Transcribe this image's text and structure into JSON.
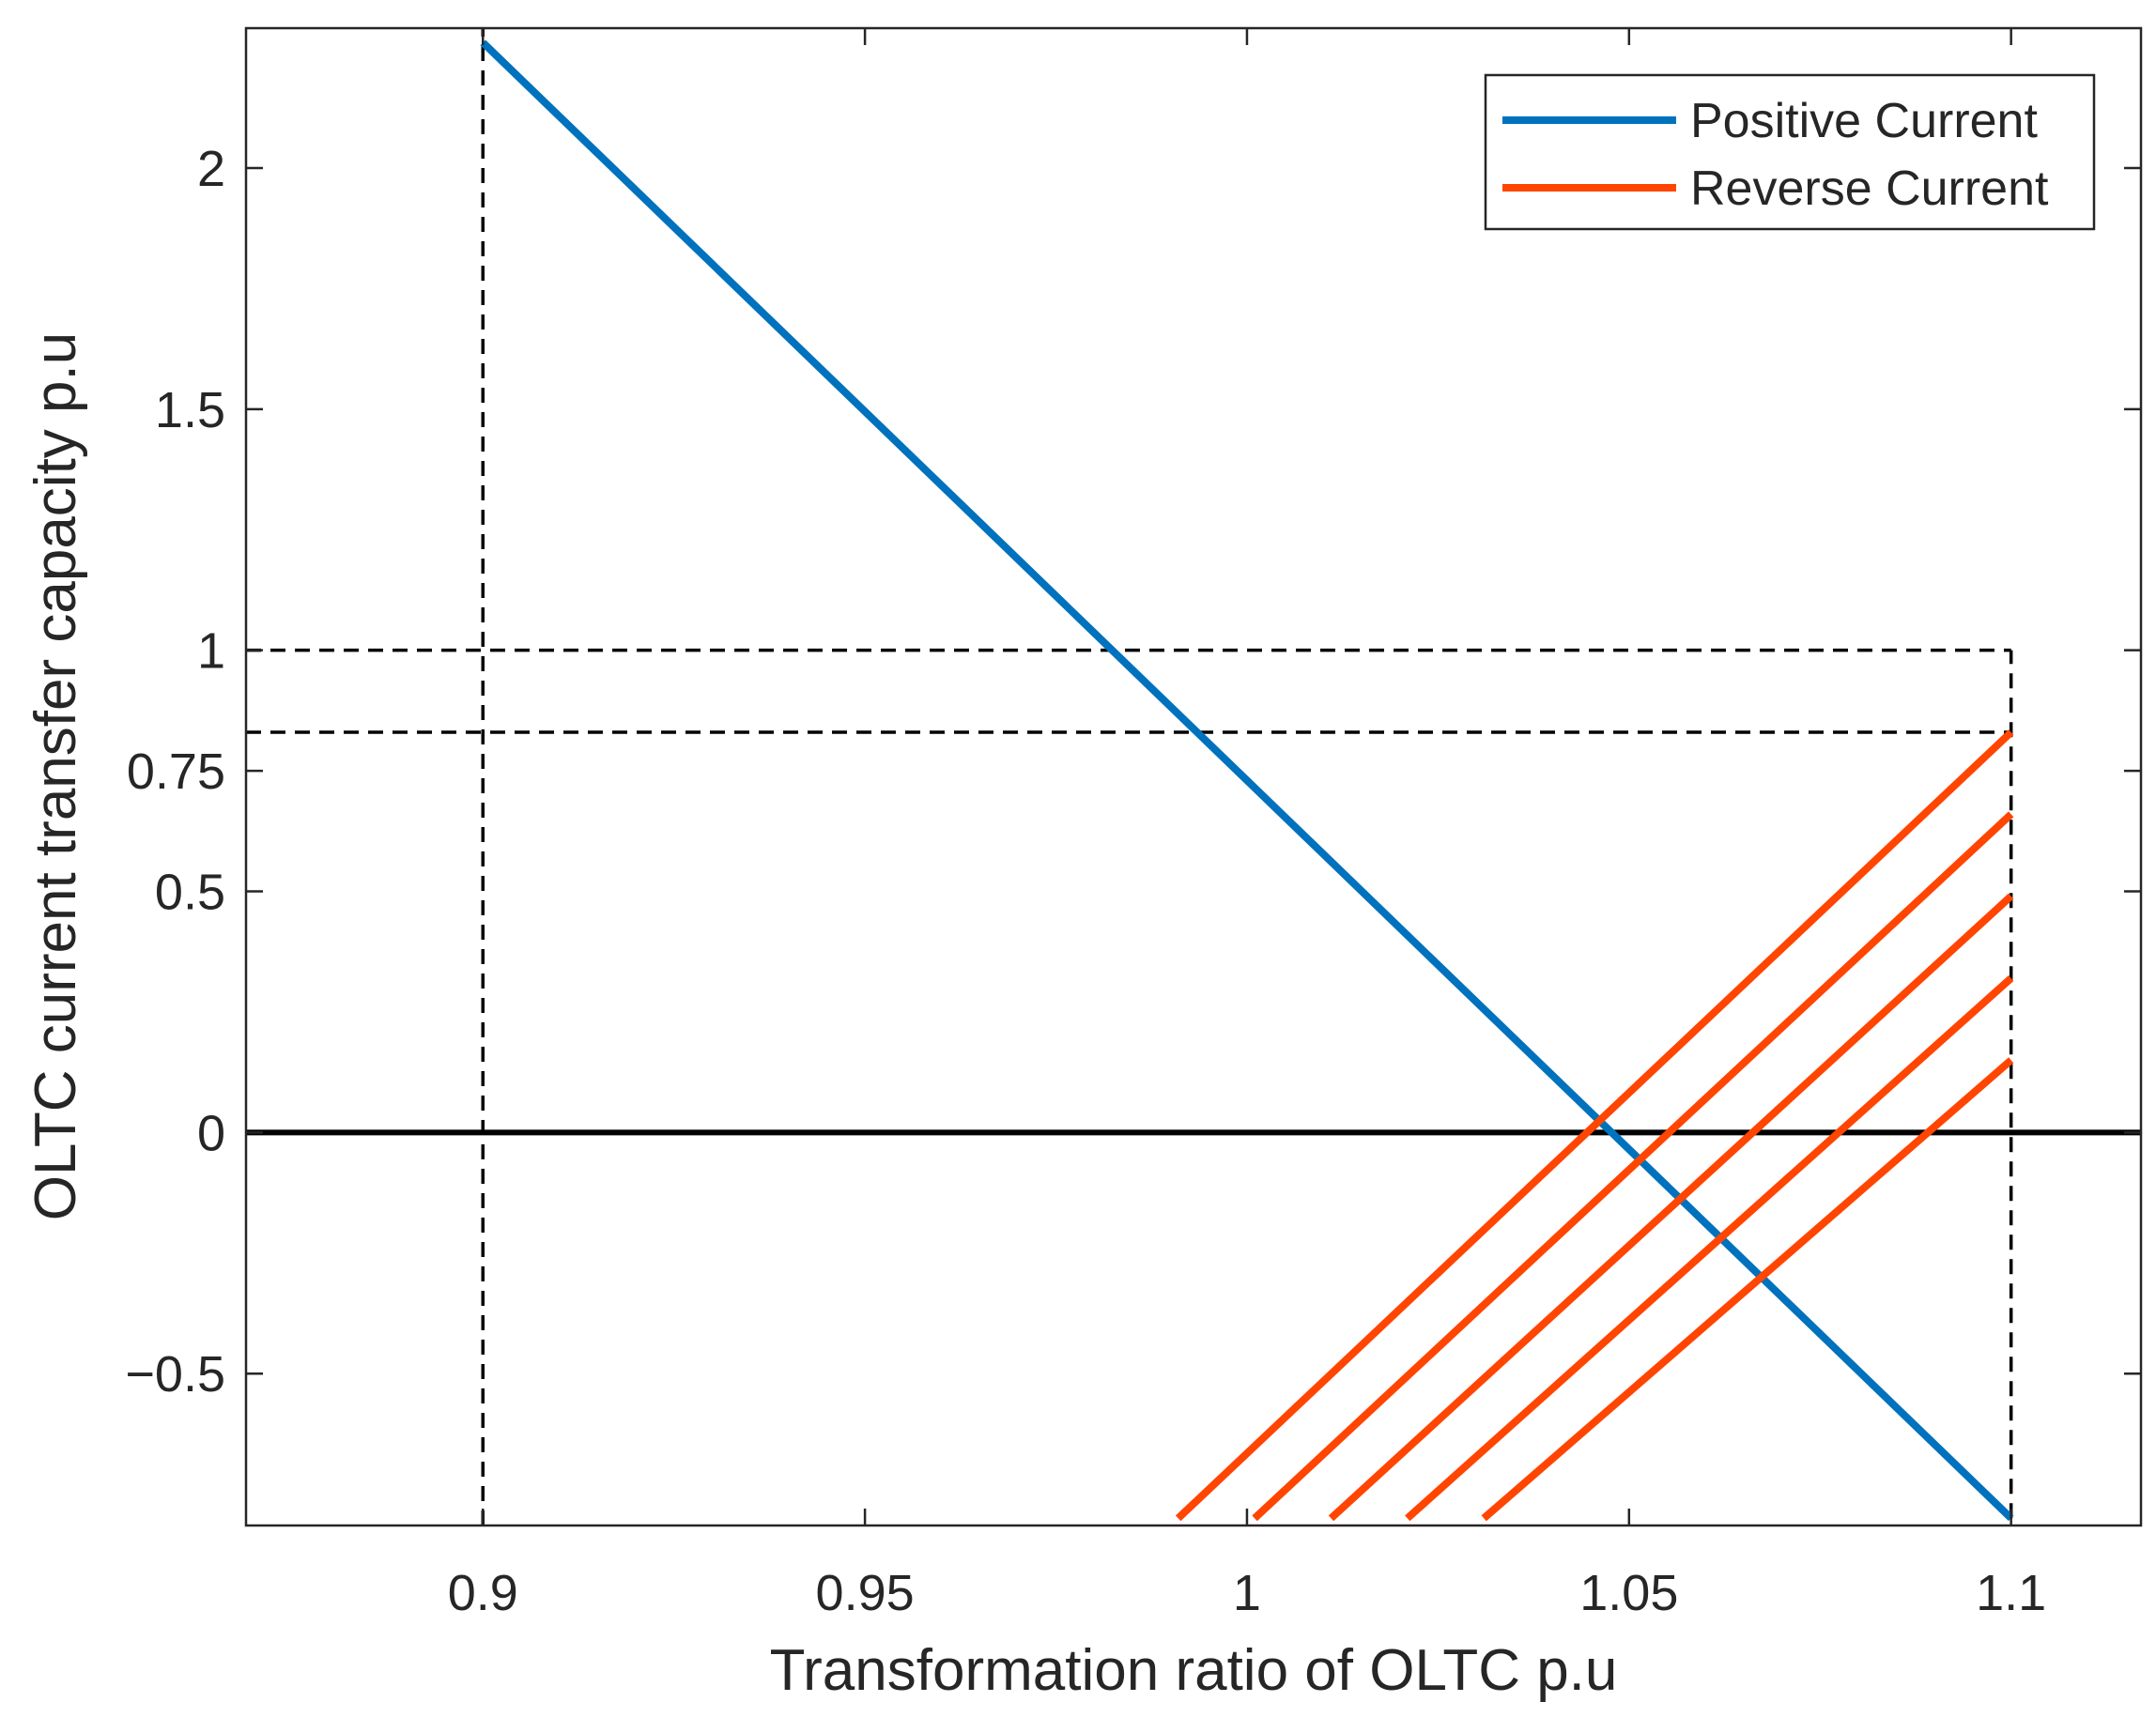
{
  "chart_data": {
    "type": "line",
    "title": "",
    "xlabel": "Transformation ratio of OLTC p.u",
    "ylabel": "OLTC current transfer capacity p.u",
    "xlim": [
      0.869,
      1.117
    ],
    "ylim": [
      -0.815,
      2.29
    ],
    "grid": false,
    "legend_position": "top-right",
    "x_ticks": [
      0.9,
      0.95,
      1.0,
      1.05,
      1.1
    ],
    "x_tick_labels": [
      "0.9",
      "0.95",
      "1",
      "1.05",
      "1.1"
    ],
    "y_ticks": [
      -0.5,
      0,
      0.5,
      0.75,
      1,
      1.5,
      2
    ],
    "y_tick_labels": [
      "−0.5",
      "0",
      "0.5",
      "0.75",
      "1",
      "1.5",
      "2"
    ],
    "colors": {
      "positive": "#0072BD",
      "reverse": "#FF4500",
      "reference": "#000000"
    },
    "series": [
      {
        "name": "Positive Current",
        "legend": true,
        "color": "#0072BD",
        "x": [
          0.9,
          1.1
        ],
        "y": [
          2.26,
          -0.8
        ]
      },
      {
        "name": "Reverse Current",
        "legend": true,
        "color": "#FF4500",
        "x": [
          0.991,
          1.1
        ],
        "y": [
          -0.8,
          0.83
        ]
      },
      {
        "name": "Reverse Current 2",
        "legend": false,
        "color": "#FF4500",
        "x": [
          1.001,
          1.1
        ],
        "y": [
          -0.8,
          0.66
        ]
      },
      {
        "name": "Reverse Current 3",
        "legend": false,
        "color": "#FF4500",
        "x": [
          1.011,
          1.1
        ],
        "y": [
          -0.8,
          0.49
        ]
      },
      {
        "name": "Reverse Current 4",
        "legend": false,
        "color": "#FF4500",
        "x": [
          1.021,
          1.1
        ],
        "y": [
          -0.8,
          0.32
        ]
      },
      {
        "name": "Reverse Current 5",
        "legend": false,
        "color": "#FF4500",
        "x": [
          1.031,
          1.1
        ],
        "y": [
          -0.8,
          0.15
        ]
      }
    ],
    "reference_lines": [
      {
        "name": "zero-line",
        "style": "solid",
        "orientation": "horizontal",
        "y": 0
      },
      {
        "name": "vline-0.9",
        "style": "dashed",
        "orientation": "vertical",
        "x": 0.9
      },
      {
        "name": "vline-1.1",
        "style": "dashed",
        "orientation": "vertical",
        "x": 1.1,
        "y_range": [
          -0.8,
          1.0
        ]
      },
      {
        "name": "hline-1",
        "style": "dashed",
        "orientation": "horizontal",
        "y": 1.0,
        "x_range": [
          0.869,
          1.1
        ]
      },
      {
        "name": "hline-0.83",
        "style": "dashed",
        "orientation": "horizontal",
        "y": 0.83,
        "x_range": [
          0.869,
          1.1
        ]
      }
    ],
    "legend": [
      "Positive Current",
      "Reverse Current"
    ]
  }
}
